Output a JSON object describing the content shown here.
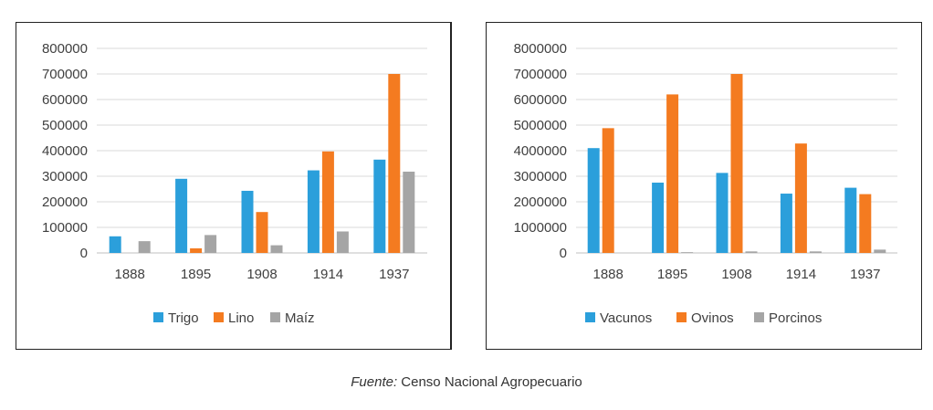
{
  "caption": {
    "prefix": "Fuente:",
    "text": " Censo Nacional Agropecuario"
  },
  "colors": {
    "blue": "#2b9fdb",
    "orange": "#f47b20",
    "gray": "#a5a5a5",
    "grid": "#d9d9d9"
  },
  "chart_data": [
    {
      "type": "bar",
      "categories": [
        "1888",
        "1895",
        "1908",
        "1914",
        "1937"
      ],
      "ylim": [
        0,
        800000
      ],
      "yticks": [
        0,
        100000,
        200000,
        300000,
        400000,
        500000,
        600000,
        700000,
        800000
      ],
      "grid": true,
      "legend_position": "bottom",
      "series": [
        {
          "name": "Trigo",
          "color": "#2b9fdb",
          "values": [
            65000,
            290000,
            243000,
            323000,
            365000
          ]
        },
        {
          "name": "Lino",
          "color": "#f47b20",
          "values": [
            0,
            18000,
            160000,
            397000,
            700000
          ]
        },
        {
          "name": "Maíz",
          "color": "#a5a5a5",
          "values": [
            46000,
            70000,
            30000,
            84000,
            318000
          ]
        }
      ]
    },
    {
      "type": "bar",
      "categories": [
        "1888",
        "1895",
        "1908",
        "1914",
        "1937"
      ],
      "ylim": [
        0,
        8000000
      ],
      "yticks": [
        0,
        1000000,
        2000000,
        3000000,
        4000000,
        5000000,
        6000000,
        7000000,
        8000000
      ],
      "grid": true,
      "legend_position": "bottom",
      "series": [
        {
          "name": "Vacunos",
          "color": "#2b9fdb",
          "values": [
            4100000,
            2750000,
            3130000,
            2320000,
            2550000
          ]
        },
        {
          "name": "Ovinos",
          "color": "#f47b20",
          "values": [
            4880000,
            6200000,
            7000000,
            4280000,
            2300000
          ]
        },
        {
          "name": "Porcinos",
          "color": "#a5a5a5",
          "values": [
            0,
            30000,
            60000,
            60000,
            130000
          ]
        }
      ]
    }
  ]
}
